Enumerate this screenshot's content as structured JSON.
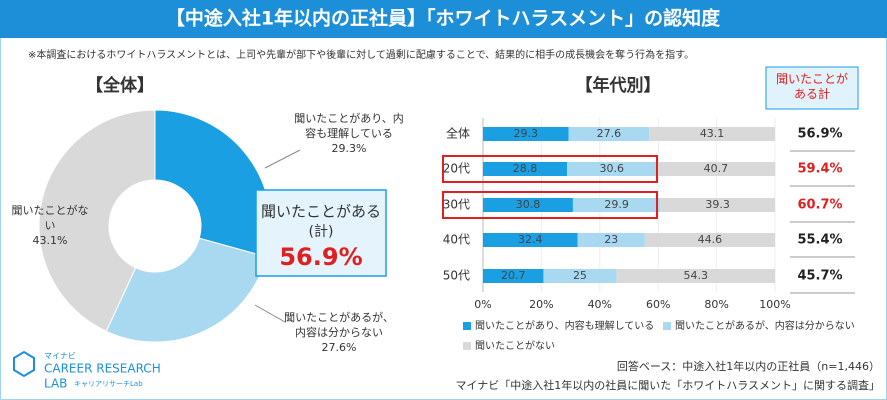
{
  "title": "【中途入社1年以内の正社員】「ホワイトハラスメント」の認知度",
  "note": "※本調査におけるホワイトハラスメントとは、上司や先輩が部下や後輩に対して過剰に配慮することで、結果的に相手の成長機会を奪う行為を指す。",
  "source_base": "回答ベース：中途入社1年以内の正社員（n=1,446）",
  "source": "マイナビ「中途入社1年以内の社員に聞いた「ホワイトハラスメント」に関する調査」",
  "logo": {
    "brand": "マイナビ",
    "name": "CAREER RESEARCH",
    "lab": "LAB",
    "sub": "キャリアリサーチLab"
  },
  "chart_data": [
    {
      "type": "pie",
      "title": "【全体】",
      "categories": [
        "聞いたことがあり、内容も理解している",
        "聞いたことがあるが、内容は分からない",
        "聞いたことがない"
      ],
      "values": [
        29.3,
        27.6,
        43.1
      ],
      "value_labels": [
        "29.3%",
        "27.6%",
        "43.1%"
      ],
      "colors": [
        "#1a9fe3",
        "#a9d8f1",
        "#d9d9d9"
      ],
      "total": {
        "label": "聞いたことがある",
        "sublabel": "(計)",
        "value": 56.9,
        "value_label": "56.9%"
      }
    },
    {
      "type": "bar",
      "orientation": "horizontal",
      "stacked": true,
      "title": "【年代別】",
      "categories": [
        "全体",
        "20代",
        "30代",
        "40代",
        "50代"
      ],
      "series": [
        {
          "name": "聞いたことがあり、内容も理解している",
          "color": "#1a9fe3",
          "values": [
            29.3,
            28.8,
            30.8,
            32.4,
            20.7
          ]
        },
        {
          "name": "聞いたことがあるが、内容は分からない",
          "color": "#a9d8f1",
          "values": [
            27.6,
            30.6,
            29.9,
            23.0,
            25.0
          ]
        },
        {
          "name": "聞いたことがない",
          "color": "#d9d9d9",
          "values": [
            43.1,
            40.7,
            39.3,
            44.6,
            54.3
          ]
        }
      ],
      "xlim": [
        0,
        100
      ],
      "xticks": [
        {
          "value": 0,
          "label": "0%"
        },
        {
          "value": 20,
          "label": "20%"
        },
        {
          "value": 40,
          "label": "40%"
        },
        {
          "value": 60,
          "label": "60%"
        },
        {
          "value": 80,
          "label": "80%"
        },
        {
          "value": 100,
          "label": "100%"
        }
      ],
      "highlight": [
        1,
        2
      ],
      "highlight_color": "#e02020",
      "totals": {
        "title": "聞いたことがある計",
        "values": [
          56.9,
          59.4,
          60.7,
          55.4,
          45.7
        ],
        "value_labels": [
          "56.9%",
          "59.4%",
          "60.7%",
          "55.4%",
          "45.7%"
        ]
      }
    }
  ]
}
